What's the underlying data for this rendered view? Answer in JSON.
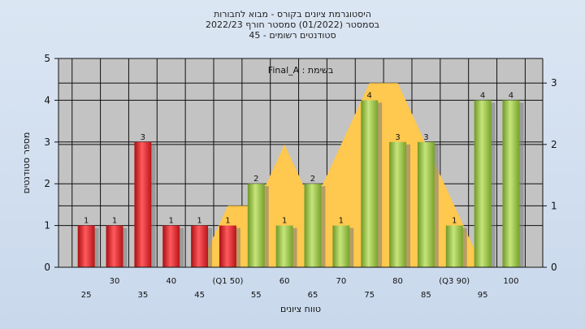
{
  "chart_data": {
    "type": "bar",
    "title_lines": [
      "היסטוגרמת ציונים בקורס - מבוא לחבורות",
      "בסמסטר  (01/2022)  סמסטר חורף 2022/23",
      "סטודנטים רשומים - 45"
    ],
    "annotation": "בשימת : Final_A",
    "xlabel": "טווח ציונים",
    "ylabel": "מספר סטודנטים",
    "categories": [
      "25",
      "30",
      "35",
      "40",
      "45",
      "(Q1 50)",
      "55",
      "60",
      "65",
      "70",
      "75",
      "80",
      "85",
      "(Q3 90)",
      "95",
      "100"
    ],
    "values": [
      1,
      1,
      3,
      1,
      1,
      1,
      2,
      1,
      2,
      1,
      4,
      3,
      3,
      1,
      4,
      4
    ],
    "bar_colors": [
      "red",
      "red",
      "red",
      "red",
      "red",
      "red",
      "green",
      "green",
      "green",
      "green",
      "green",
      "green",
      "green",
      "green",
      "green",
      "green"
    ],
    "ylim": [
      0,
      5
    ],
    "yticks": [
      0,
      1,
      2,
      3,
      4,
      5
    ],
    "y2lim": [
      0,
      3.4
    ],
    "y2ticks": [
      0,
      1,
      2,
      3
    ],
    "area_series": [
      0,
      0,
      0,
      0,
      0,
      1,
      1,
      2,
      1,
      2,
      3,
      3,
      2,
      1,
      0,
      0
    ],
    "colors": {
      "red": "#e8262a",
      "green": "#96c23c",
      "area": "#ffc84e",
      "plot_bg": "#c3c3c3"
    }
  }
}
